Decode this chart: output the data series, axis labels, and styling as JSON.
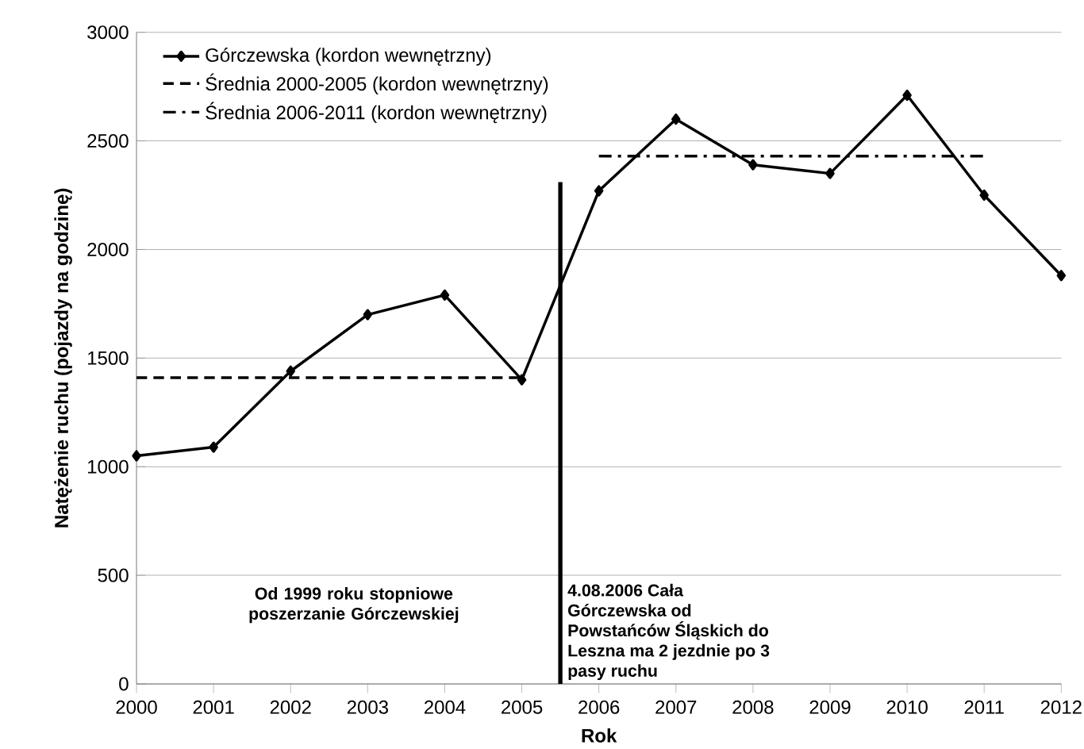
{
  "chart_data": {
    "type": "line",
    "xlabel": "Rok",
    "ylabel": "Natężenie ruchu (pojazdy na godzinę)",
    "x": [
      2000,
      2001,
      2002,
      2003,
      2004,
      2005,
      2006,
      2007,
      2008,
      2009,
      2010,
      2011,
      2012
    ],
    "series": [
      {
        "name": "Górczewska (kordon wewnętrzny)",
        "color": "#000000",
        "marker": "diamond",
        "line_style": "solid",
        "values": [
          1050,
          1090,
          1440,
          1700,
          1790,
          1400,
          2270,
          2600,
          2390,
          2350,
          2710,
          2250,
          1880
        ]
      },
      {
        "name": "Średnia 2000-2005 (kordon wewnętrzny)",
        "color": "#000000",
        "marker": "none",
        "line_style": "dashed",
        "x": [
          2000,
          2005
        ],
        "values": [
          1410,
          1410
        ]
      },
      {
        "name": "Średnia 2006-2011 (kordon wewnętrzny)",
        "color": "#000000",
        "marker": "none",
        "line_style": "dashdot",
        "x": [
          2006,
          2011
        ],
        "values": [
          2430,
          2430
        ]
      }
    ],
    "xlim": [
      2000,
      2012
    ],
    "xticks": [
      2000,
      2001,
      2002,
      2003,
      2004,
      2005,
      2006,
      2007,
      2008,
      2009,
      2010,
      2011,
      2012
    ],
    "ylim": [
      0,
      3000
    ],
    "yticks": [
      0,
      500,
      1000,
      1500,
      2000,
      2500,
      3000
    ],
    "ref_lines": [
      {
        "axis": "x",
        "value": 2005.5,
        "color": "#000000"
      }
    ],
    "annotations": [
      "Od 1999 roku stopniowe poszerzanie Górczewskiej",
      "4.08.2006 Cała Górczewska od Powstańców Śląskich do Leszna ma 2 jezdnie po 3 pasy ruchu"
    ],
    "grid": "y",
    "legend": "top left"
  }
}
